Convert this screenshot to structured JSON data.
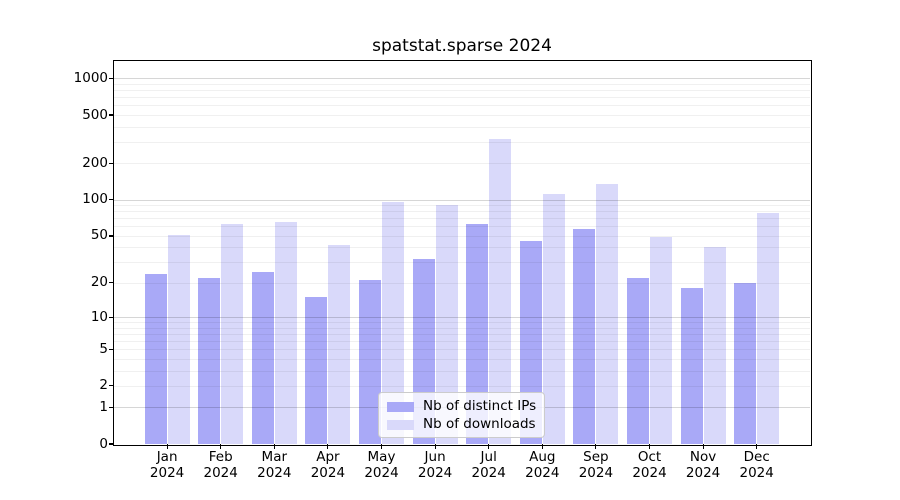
{
  "title": "spatstat.sparse 2024",
  "chart_data": {
    "type": "bar",
    "title": "spatstat.sparse 2024",
    "categories": [
      "Jan",
      "Feb",
      "Mar",
      "Apr",
      "May",
      "Jun",
      "Jul",
      "Aug",
      "Sep",
      "Oct",
      "Nov",
      "Dec"
    ],
    "year_label": "2024",
    "series": [
      {
        "name": "Nb of distinct IPs",
        "color": "#a9a9f7",
        "values": [
          24,
          22,
          25,
          15,
          21,
          32,
          63,
          45,
          57,
          22,
          18,
          20
        ]
      },
      {
        "name": "Nb of downloads",
        "color": "#d9d9fa",
        "values": [
          51,
          63,
          66,
          42,
          95,
          90,
          316,
          111,
          134,
          49,
          40,
          78
        ]
      }
    ],
    "yscale": "log1p",
    "ylim": [
      0,
      1390
    ],
    "yticks": [
      1000,
      500,
      200,
      100,
      50,
      20,
      10,
      5,
      2,
      1,
      0
    ],
    "minor_gridlines": [
      2,
      3,
      4,
      5,
      6,
      7,
      8,
      9,
      20,
      30,
      40,
      50,
      60,
      70,
      80,
      90,
      200,
      300,
      400,
      500,
      600,
      700,
      800,
      900
    ],
    "major_gridlines": [
      1,
      10,
      100,
      1000
    ],
    "xlabel": "",
    "ylabel": "",
    "grid": "on",
    "legend_position": "lower center"
  }
}
